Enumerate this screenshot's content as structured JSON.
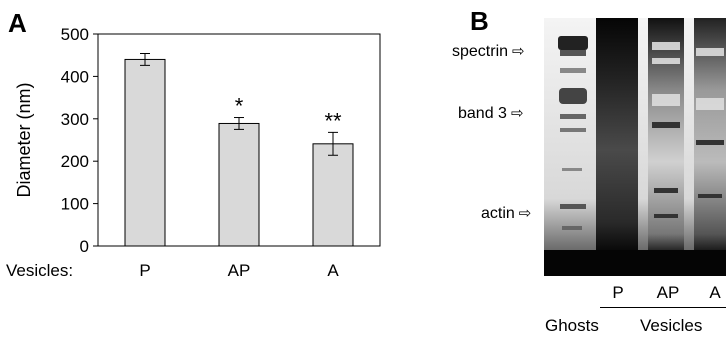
{
  "panels": {
    "a_label": "A",
    "b_label": "B"
  },
  "chart_data": {
    "type": "bar",
    "categories": [
      "P",
      "AP",
      "A"
    ],
    "values": [
      440,
      289,
      241
    ],
    "errors": [
      14,
      14,
      27
    ],
    "significance": [
      "",
      "*",
      "**"
    ],
    "ylabel": "Diameter (nm)",
    "xlabel": "Vesicles:",
    "ylim": [
      0,
      500
    ],
    "yticks": [
      0,
      100,
      200,
      300,
      400,
      500
    ],
    "bar_color": "#d9d9d9",
    "grid": false
  },
  "gel": {
    "band_labels": [
      "spectrin",
      "band 3",
      "actin"
    ],
    "lanes": [
      "P",
      "AP",
      "A"
    ],
    "group_left": "Ghosts",
    "group_right": "Vesicles"
  }
}
